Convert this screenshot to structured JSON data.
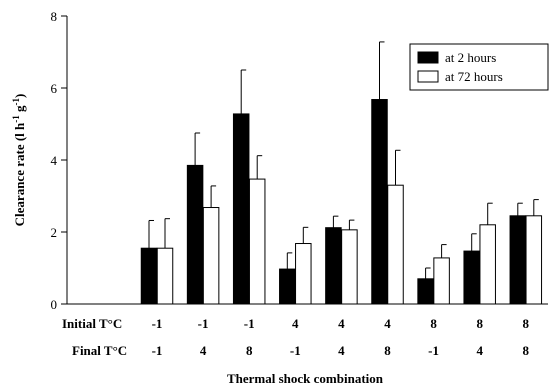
{
  "chart_data": {
    "type": "bar",
    "title": "",
    "xlabel": "Thermal shock combination",
    "ylabel": "Clearance rate (l h",
    "ylabel_sup1": "-1",
    "ylabel_mid": " g",
    "ylabel_sup2": "-1",
    "ylabel_end": ")",
    "ylim": [
      0,
      8
    ],
    "yticks": [
      "0",
      "2",
      "4",
      "6",
      "8"
    ],
    "ytick_values": [
      0,
      2,
      4,
      6,
      8
    ],
    "row_labels": {
      "initial": "Initial T°C",
      "final": "Final T°C"
    },
    "categories": [
      {
        "initial": "-1",
        "final": "-1"
      },
      {
        "initial": "-1",
        "final": "4"
      },
      {
        "initial": "-1",
        "final": "8"
      },
      {
        "initial": "4",
        "final": "-1"
      },
      {
        "initial": "4",
        "final": "4"
      },
      {
        "initial": "4",
        "final": "8"
      },
      {
        "initial": "8",
        "final": "-1"
      },
      {
        "initial": "8",
        "final": "4"
      },
      {
        "initial": "8",
        "final": "8"
      }
    ],
    "series": [
      {
        "name": "at 2 hours",
        "color": "#000000",
        "values": [
          1.55,
          3.85,
          5.28,
          0.97,
          2.12,
          5.68,
          0.7,
          1.47,
          2.45
        ],
        "errors": [
          0.77,
          0.9,
          1.22,
          0.45,
          0.32,
          1.6,
          0.3,
          0.48,
          0.35
        ]
      },
      {
        "name": "at 72 hours",
        "color": "#ffffff",
        "values": [
          1.55,
          2.68,
          3.47,
          1.68,
          2.06,
          3.3,
          1.28,
          2.2,
          2.45
        ],
        "errors": [
          0.82,
          0.6,
          0.65,
          0.45,
          0.27,
          0.97,
          0.37,
          0.6,
          0.45
        ]
      }
    ],
    "legend_position": "top-right",
    "grid": false
  }
}
